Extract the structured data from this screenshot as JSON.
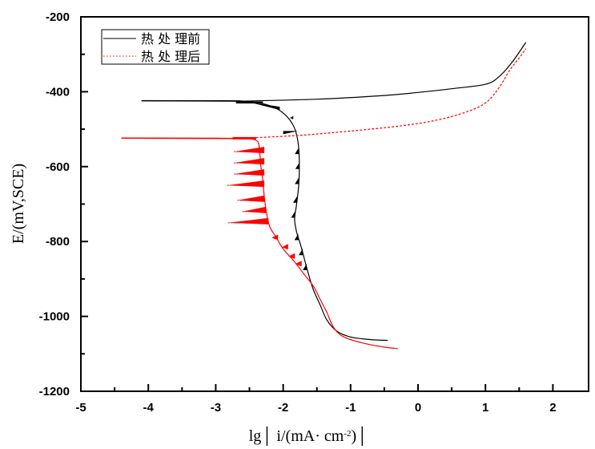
{
  "chart_data": {
    "type": "line",
    "title": "",
    "xlabel": "lg│ i/(mA·  cm⁻²)│",
    "xlabel_parts": {
      "main": "lg│ i/(mA·  cm",
      "sup": "-2",
      "tail": ")│"
    },
    "ylabel": "E/(mV,SCE)",
    "xlim": [
      -5,
      2.5
    ],
    "ylim": [
      -1200,
      -200
    ],
    "xticks": [
      -5,
      -4,
      -3,
      -2,
      -1,
      0,
      1,
      2
    ],
    "xtick_labels": [
      "-5",
      "-4",
      "-3",
      "-2",
      "-1",
      "0",
      "1",
      "2"
    ],
    "yticks": [
      -200,
      -400,
      -600,
      -800,
      -1000,
      -1200
    ],
    "ytick_labels": [
      "-200",
      "-400",
      "-600",
      "-800",
      "-1000",
      "-1200"
    ],
    "grid": false,
    "legend_position": "top-left",
    "series": [
      {
        "name": "热处理前",
        "legend_label": "热 处 理前",
        "color": "#000000",
        "style": "solid",
        "points": [
          [
            -4.1,
            -424
          ],
          [
            -3.0,
            -424
          ],
          [
            -2.6,
            -425
          ],
          [
            -2.3,
            -432
          ],
          [
            -2.1,
            -445
          ],
          [
            -1.95,
            -465
          ],
          [
            -1.85,
            -490
          ],
          [
            -1.8,
            -515
          ],
          [
            -1.77,
            -550
          ],
          [
            -1.76,
            -600
          ],
          [
            -1.77,
            -650
          ],
          [
            -1.8,
            -700
          ],
          [
            -1.83,
            -740
          ],
          [
            -1.8,
            -775
          ],
          [
            -1.74,
            -810
          ],
          [
            -1.68,
            -850
          ],
          [
            -1.62,
            -890
          ],
          [
            -1.55,
            -930
          ],
          [
            -1.45,
            -970
          ],
          [
            -1.35,
            -1010
          ],
          [
            -1.2,
            -1040
          ],
          [
            -1.0,
            -1055
          ],
          [
            -0.7,
            -1062
          ],
          [
            -0.45,
            -1064
          ]
        ],
        "anodic_points": [
          [
            -2.6,
            -425
          ],
          [
            -1.5,
            -420
          ],
          [
            -0.5,
            -410
          ],
          [
            0.0,
            -402
          ],
          [
            0.5,
            -392
          ],
          [
            1.0,
            -380
          ],
          [
            1.2,
            -360
          ],
          [
            1.4,
            -320
          ],
          [
            1.6,
            -268
          ]
        ]
      },
      {
        "name": "热处理后",
        "legend_label": "热 处 理后",
        "color": "#ff0000",
        "style": "dotted",
        "points": [
          [
            -4.4,
            -524
          ],
          [
            -3.2,
            -524
          ],
          [
            -2.7,
            -525
          ],
          [
            -2.4,
            -530
          ],
          [
            -2.35,
            -560
          ],
          [
            -2.33,
            -600
          ],
          [
            -2.3,
            -640
          ],
          [
            -2.28,
            -680
          ],
          [
            -2.25,
            -720
          ],
          [
            -2.2,
            -760
          ],
          [
            -2.1,
            -790
          ],
          [
            -2.0,
            -820
          ],
          [
            -1.85,
            -850
          ],
          [
            -1.7,
            -885
          ],
          [
            -1.55,
            -920
          ],
          [
            -1.45,
            -955
          ],
          [
            -1.35,
            -990
          ],
          [
            -1.25,
            -1030
          ],
          [
            -1.1,
            -1055
          ],
          [
            -0.8,
            -1072
          ],
          [
            -0.5,
            -1082
          ],
          [
            -0.3,
            -1086
          ]
        ],
        "anodic_points": [
          [
            -2.7,
            -525
          ],
          [
            -1.8,
            -517
          ],
          [
            -1.0,
            -505
          ],
          [
            -0.2,
            -490
          ],
          [
            0.3,
            -475
          ],
          [
            0.7,
            -455
          ],
          [
            1.0,
            -430
          ],
          [
            1.2,
            -390
          ],
          [
            1.35,
            -345
          ],
          [
            1.5,
            -310
          ],
          [
            1.6,
            -285
          ]
        ],
        "noise_spikes_potentials": [
          -560,
          -590,
          -620,
          -650,
          -690,
          -720,
          -750
        ]
      }
    ]
  }
}
